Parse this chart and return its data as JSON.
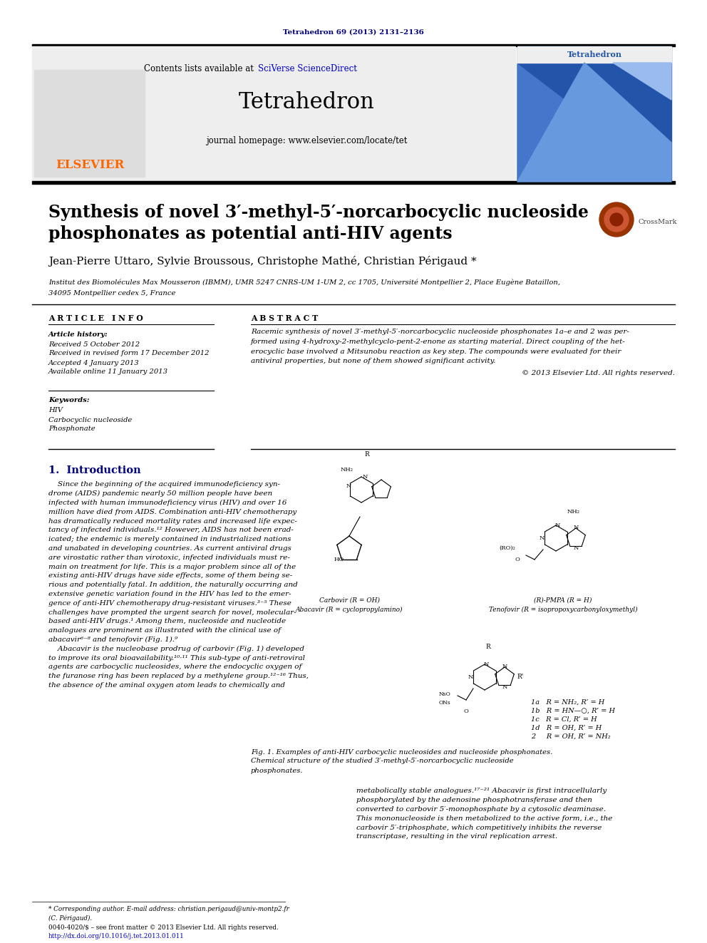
{
  "journal_ref": "Tetrahedron 69 (2013) 2131–2136",
  "journal_name": "Tetrahedron",
  "contents_line": "Contents lists available at SciVerse ScienceDirect",
  "homepage_line": "journal homepage: www.elsevier.com/locate/tet",
  "title_line1": "Synthesis of novel 3′-methyl-5′-norcarbocyclic nucleoside",
  "title_line2": "phosphonates as potential anti-HIV agents",
  "authors": "Jean-Pierre Uttaro, Sylvie Broussous, Christophe Mathé, Christian Périgaud *",
  "affiliation_line1": "Institut des Biomolécules Max Mousseron (IBMM), UMR 5247 CNRS-UM 1-UM 2, cc 1705, Université Montpellier 2, Place Eugène Bataillon,",
  "affiliation_line2": "34095 Montpellier cedex 5, France",
  "article_info_title": "A R T I C L E   I N F O",
  "abstract_title": "A B S T R A C T",
  "article_history_label": "Article history:",
  "received": "Received 5 October 2012",
  "received_revised": "Received in revised form 17 December 2012",
  "accepted": "Accepted 4 January 2013",
  "available": "Available online 11 January 2013",
  "keywords_label": "Keywords:",
  "keyword1": "HIV",
  "keyword2": "Carbocyclic nucleoside",
  "keyword3": "Phosphonate",
  "abstract_text": "Racemic synthesis of novel 3′-methyl-5′-norcarbocyclic nucleoside phosphonates 1a–e and 2 was per-\nformed using 4-hydroxy-2-methylcyclo-pent-2-enone as starting material. Direct coupling of the het-\nerocyclic base involved a Mitsunobu reaction as key step. The compounds were evaluated for their\nantiviral properties, but none of them showed significant activity.",
  "copyright": "© 2013 Elsevier Ltd. All rights reserved.",
  "section1_title": "1.  Introduction",
  "fig1_caption_line1": "Fig. 1. Examples of anti-HIV carbocyclic nucleosides and nucleoside phosphonates.",
  "fig1_caption_line2": "Chemical structure of the studied 3′-methyl-5′-norcarbocyclic nucleoside",
  "fig1_caption_line3": "phosphonates.",
  "carbovir_label1": "Carbovir (R = OH)",
  "carbovir_label2": "Abacavir (R = cyclopropylamino)",
  "tenofovir_label1": "(R)-PMPA (R = H)",
  "tenofovir_label2": "Tenofovir (R = isopropoxycarbonyloxymethyl)",
  "footnote_star_line1": "* Corresponding author. E-mail address: christian.perigaud@univ-montp2.fr",
  "footnote_star_line2": "(C. Périgaud).",
  "footnote_issn": "0040-4020/$ – see front matter © 2013 Elsevier Ltd. All rights reserved.",
  "footnote_doi": "http://dx.doi.org/10.1016/j.tet.2013.01.011",
  "bg_color": "#ffffff",
  "elsevier_orange": "#FF6600",
  "link_color": "#0000CC",
  "dark_blue": "#000080",
  "section_color": "#000080"
}
